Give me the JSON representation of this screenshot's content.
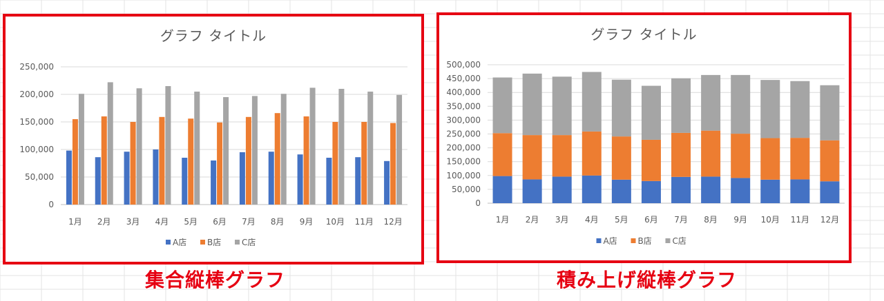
{
  "colors": {
    "A": "#4472c4",
    "B": "#ed7d31",
    "C": "#a5a5a5",
    "frame": "#e60012",
    "caption": "#e60012"
  },
  "chart_data": [
    {
      "type": "bar",
      "mode": "clustered",
      "title": "グラフ タイトル",
      "categories": [
        "1月",
        "2月",
        "3月",
        "4月",
        "5月",
        "6月",
        "7月",
        "8月",
        "9月",
        "10月",
        "11月",
        "12月"
      ],
      "ylim": [
        0,
        250000
      ],
      "yticks": [
        "0",
        "50,000",
        "100,000",
        "150,000",
        "200,000",
        "250,000"
      ],
      "grid": true,
      "legend": "bottom",
      "series": [
        {
          "name": "A店",
          "key": "A",
          "values": [
            98000,
            86000,
            96000,
            100000,
            85000,
            80000,
            95000,
            96000,
            91000,
            85000,
            86000,
            79000
          ]
        },
        {
          "name": "B店",
          "key": "B",
          "values": [
            155000,
            160000,
            150000,
            159000,
            156000,
            149000,
            159000,
            166000,
            160000,
            150000,
            150000,
            148000
          ]
        },
        {
          "name": "C店",
          "key": "C",
          "values": [
            201000,
            222000,
            211000,
            215000,
            205000,
            195000,
            197000,
            201000,
            212000,
            210000,
            205000,
            199000
          ]
        }
      ],
      "caption": "集合縦棒グラフ"
    },
    {
      "type": "bar",
      "mode": "stacked",
      "title": "グラフ タイトル",
      "categories": [
        "1月",
        "2月",
        "3月",
        "4月",
        "5月",
        "6月",
        "7月",
        "8月",
        "9月",
        "10月",
        "11月",
        "12月"
      ],
      "ylim": [
        0,
        500000
      ],
      "yticks": [
        "0",
        "50,000",
        "100,000",
        "150,000",
        "200,000",
        "250,000",
        "300,000",
        "350,000",
        "400,000",
        "450,000",
        "500,000"
      ],
      "grid": true,
      "legend": "bottom",
      "series": [
        {
          "name": "A店",
          "key": "A",
          "values": [
            98000,
            86000,
            96000,
            100000,
            85000,
            80000,
            95000,
            96000,
            91000,
            85000,
            86000,
            79000
          ]
        },
        {
          "name": "B店",
          "key": "B",
          "values": [
            155000,
            160000,
            150000,
            159000,
            156000,
            149000,
            159000,
            166000,
            160000,
            150000,
            150000,
            148000
          ]
        },
        {
          "name": "C店",
          "key": "C",
          "values": [
            201000,
            222000,
            211000,
            215000,
            205000,
            195000,
            197000,
            201000,
            212000,
            210000,
            205000,
            199000
          ]
        }
      ],
      "caption": "積み上げ縦棒グラフ"
    }
  ]
}
